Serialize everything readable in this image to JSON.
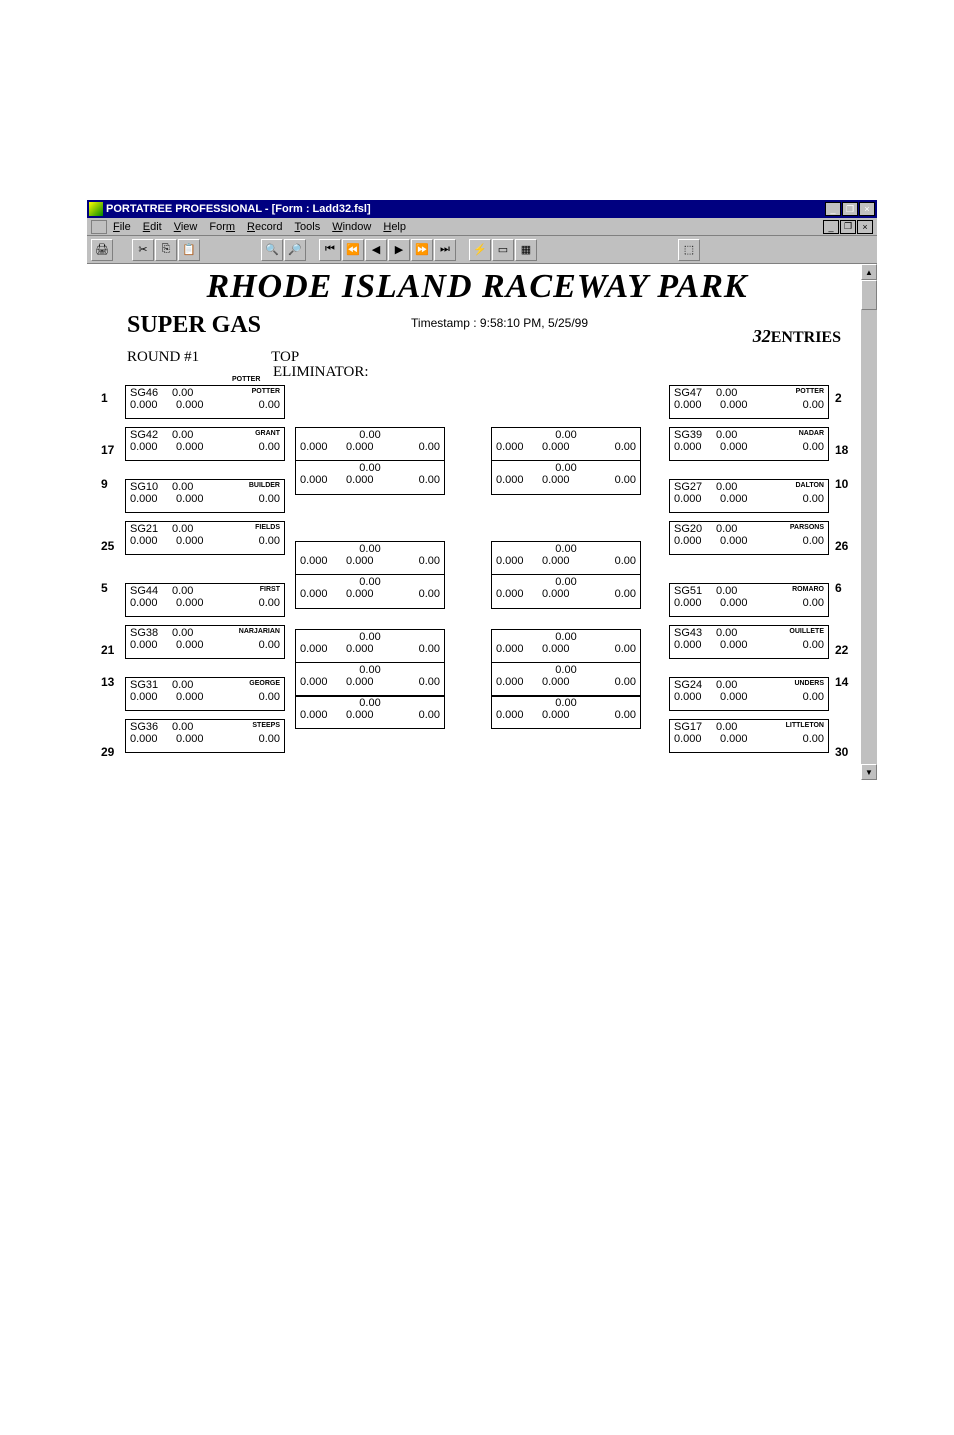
{
  "title_app": "PORTATREE PROFESSIONAL - [Form : Ladd32.fsl]",
  "menus": [
    "File",
    "Edit",
    "View",
    "Form",
    "Record",
    "Tools",
    "Window",
    "Help"
  ],
  "headline": "RHODE ISLAND RACEWAY PARK",
  "class_name": "SUPER GAS",
  "timestamp": "Timestamp :  9:58:10 PM, 5/25/99",
  "entries_n": "32",
  "entries_lbl": "ENTRIES",
  "round": "ROUND #1",
  "top": "TOP",
  "eliminator": "ELIMINATOR:",
  "potter_overlay": "POTTER",
  "zero2": "0.00",
  "zero3": "0.000",
  "left": [
    {
      "seed": "1",
      "car": "SG46",
      "name": "POTTER"
    },
    {
      "seed": "17",
      "car": "SG42",
      "name": "GRANT"
    },
    {
      "seed": "9",
      "car": "SG10",
      "name": "BUILDER"
    },
    {
      "seed": "25",
      "car": "SG21",
      "name": "FIELDS"
    },
    {
      "seed": "5",
      "car": "SG44",
      "name": "FIRST"
    },
    {
      "seed": "21",
      "car": "SG38",
      "name": "NARJARIAN"
    },
    {
      "seed": "13",
      "car": "SG31",
      "name": "GEORGE"
    },
    {
      "seed": "29",
      "car": "SG36",
      "name": "STEEPS"
    }
  ],
  "right": [
    {
      "seed": "2",
      "car": "SG47",
      "name": "POTTER"
    },
    {
      "seed": "18",
      "car": "SG39",
      "name": "NADAR"
    },
    {
      "seed": "10",
      "car": "SG27",
      "name": "DALTON"
    },
    {
      "seed": "26",
      "car": "SG20",
      "name": "PARSONS"
    },
    {
      "seed": "6",
      "car": "SG51",
      "name": "ROMARO"
    },
    {
      "seed": "22",
      "car": "SG43",
      "name": "OUILLETE"
    },
    {
      "seed": "14",
      "car": "SG24",
      "name": "UNDERS"
    },
    {
      "seed": "30",
      "car": "SG17",
      "name": "LITTLETON"
    }
  ]
}
